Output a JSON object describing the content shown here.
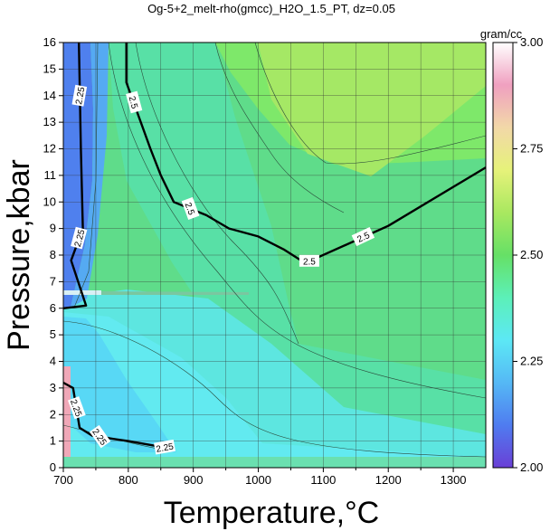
{
  "chart_data": {
    "type": "heatmap",
    "subtype": "contour",
    "title": "Og-5+2_melt-rho(gmcc)_H2O_1.5_PT, dz=0.05",
    "xlabel": "Temperature,°C",
    "ylabel": "Pressure,kbar",
    "xlim": [
      700,
      1350
    ],
    "ylim": [
      0,
      16
    ],
    "x_ticks": [
      "700",
      "800",
      "900",
      "1000",
      "1100",
      "1200",
      "1300"
    ],
    "y_ticks": [
      "0",
      "1",
      "2",
      "3",
      "4",
      "5",
      "6",
      "7",
      "8",
      "9",
      "10",
      "11",
      "12",
      "13",
      "14",
      "15",
      "16"
    ],
    "grid": true,
    "colorbar": {
      "unit": "gram/cc",
      "range": [
        2.0,
        3.0
      ],
      "ticks": [
        "2.00",
        "2.25",
        "2.50",
        "2.75",
        "3.00"
      ],
      "position": "right",
      "stops": [
        {
          "v": 2.0,
          "color": "#6a3fd6"
        },
        {
          "v": 2.1,
          "color": "#4f7cf0"
        },
        {
          "v": 2.2,
          "color": "#55b8f5"
        },
        {
          "v": 2.3,
          "color": "#5ce8f5"
        },
        {
          "v": 2.4,
          "color": "#5cf0b8"
        },
        {
          "v": 2.5,
          "color": "#66e066"
        },
        {
          "v": 2.6,
          "color": "#a9e860"
        },
        {
          "v": 2.7,
          "color": "#e6f27a"
        },
        {
          "v": 2.8,
          "color": "#f2d8a8"
        },
        {
          "v": 2.9,
          "color": "#f0a0c0"
        },
        {
          "v": 3.0,
          "color": "#ffffff"
        }
      ]
    },
    "bold_contours": [
      {
        "level": "2.5",
        "points": [
          [
            797,
            16
          ],
          [
            797,
            14.5
          ],
          [
            834,
            12
          ],
          [
            850,
            11
          ],
          [
            870,
            10
          ],
          [
            920,
            9.5
          ],
          [
            955,
            9
          ],
          [
            1000,
            8.7
          ],
          [
            1040,
            8.2
          ],
          [
            1072,
            7.7
          ],
          [
            1200,
            9.1
          ],
          [
            1350,
            11.3
          ]
        ]
      },
      {
        "level": "2.25",
        "points": [
          [
            724,
            16
          ],
          [
            727,
            12
          ],
          [
            730,
            9
          ],
          [
            712,
            7.8
          ],
          [
            735,
            6.1
          ],
          [
            700,
            6.0
          ]
        ]
      },
      {
        "level": "2.25",
        "points": [
          [
            700,
            3.2
          ],
          [
            715,
            3.0
          ],
          [
            725,
            1.5
          ],
          [
            745,
            1.2
          ],
          [
            800,
            1.0
          ],
          [
            870,
            0.7
          ]
        ]
      }
    ],
    "contour_labels": [
      "2.5",
      "2.5",
      "2.5",
      "2.5",
      "2.25",
      "2.25",
      "2.25",
      "2.25",
      "2.25"
    ]
  }
}
